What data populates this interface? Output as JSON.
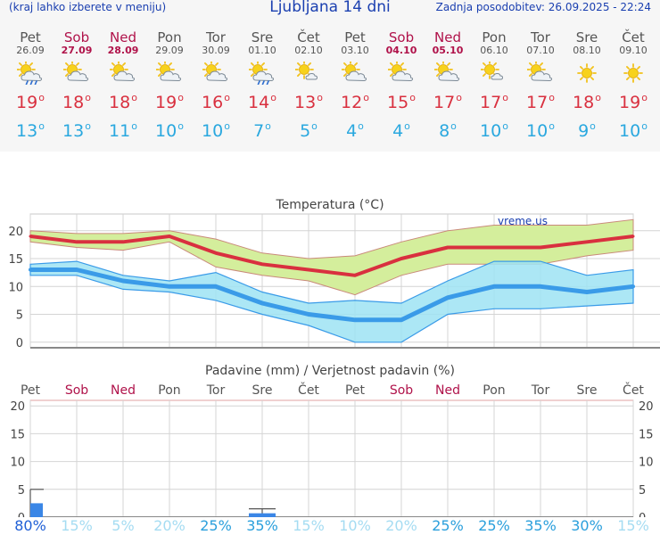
{
  "header": {
    "left_note": "(kraj lahko izberete v meniju)",
    "title": "Ljubljana 14 dni",
    "updated": "Zadnja posodobitev: 26.09.2025 - 22:24"
  },
  "days": [
    {
      "name": "Pet",
      "date": "26.09",
      "weekend": false,
      "icon": "sun-cloud-rain-icon",
      "tmax": "19",
      "tmin": "13",
      "rain_prob": "80%"
    },
    {
      "name": "Sob",
      "date": "27.09",
      "weekend": true,
      "icon": "sun-cloud-icon",
      "tmax": "18",
      "tmin": "13",
      "rain_prob": "15%"
    },
    {
      "name": "Ned",
      "date": "28.09",
      "weekend": true,
      "icon": "sun-cloud-icon",
      "tmax": "18",
      "tmin": "11",
      "rain_prob": "5%"
    },
    {
      "name": "Pon",
      "date": "29.09",
      "weekend": false,
      "icon": "sun-cloud-icon",
      "tmax": "19",
      "tmin": "10",
      "rain_prob": "20%"
    },
    {
      "name": "Tor",
      "date": "30.09",
      "weekend": false,
      "icon": "sun-cloud-icon",
      "tmax": "16",
      "tmin": "10",
      "rain_prob": "25%"
    },
    {
      "name": "Sre",
      "date": "01.10",
      "weekend": false,
      "icon": "sun-cloud-rain-icon",
      "tmax": "14",
      "tmin": "7",
      "rain_prob": "35%"
    },
    {
      "name": "Čet",
      "date": "02.10",
      "weekend": false,
      "icon": "sun-small-cloud-icon",
      "tmax": "13",
      "tmin": "5",
      "rain_prob": "15%"
    },
    {
      "name": "Pet",
      "date": "03.10",
      "weekend": false,
      "icon": "sun-cloud-icon",
      "tmax": "12",
      "tmin": "4",
      "rain_prob": "10%"
    },
    {
      "name": "Sob",
      "date": "04.10",
      "weekend": true,
      "icon": "sun-cloud-icon",
      "tmax": "15",
      "tmin": "4",
      "rain_prob": "20%"
    },
    {
      "name": "Ned",
      "date": "05.10",
      "weekend": true,
      "icon": "sun-cloud-icon",
      "tmax": "17",
      "tmin": "8",
      "rain_prob": "25%"
    },
    {
      "name": "Pon",
      "date": "06.10",
      "weekend": false,
      "icon": "sun-small-cloud-icon",
      "tmax": "17",
      "tmin": "10",
      "rain_prob": "25%"
    },
    {
      "name": "Tor",
      "date": "07.10",
      "weekend": false,
      "icon": "sun-cloud-icon",
      "tmax": "17",
      "tmin": "10",
      "rain_prob": "35%"
    },
    {
      "name": "Sre",
      "date": "08.10",
      "weekend": false,
      "icon": "sun-icon",
      "tmax": "18",
      "tmin": "9",
      "rain_prob": "30%"
    },
    {
      "name": "Čet",
      "date": "09.10",
      "weekend": false,
      "icon": "sun-icon",
      "tmax": "19",
      "tmin": "10",
      "rain_prob": "15%"
    }
  ],
  "colors": {
    "tmax": "#d9303f",
    "tmin": "#2aa8df",
    "weekend": "#b0124a",
    "max_band": "#d4ee9c",
    "min_band": "#9ee3f3",
    "min_line": "#3a9be8",
    "bar": "#3a86e6"
  },
  "chart_data": [
    {
      "type": "line",
      "title": "Temperatura (°C)",
      "watermark": "vreme.us",
      "categories": [
        "Pet",
        "Sob",
        "Ned",
        "Pon",
        "Tor",
        "Sre",
        "Čet",
        "Pet",
        "Sob",
        "Ned",
        "Pon",
        "Tor",
        "Sre",
        "Čet"
      ],
      "series": [
        {
          "values": [
            19,
            18,
            18,
            19,
            16,
            14,
            13,
            12,
            15,
            17,
            17,
            17,
            18,
            19
          ],
          "band_high": [
            20,
            19.5,
            19.5,
            20,
            18.5,
            16,
            15,
            15.5,
            18,
            20,
            21,
            21,
            21,
            22
          ],
          "band_low": [
            18,
            17,
            16.5,
            18,
            13.5,
            12,
            11,
            8.5,
            12,
            14,
            14,
            14,
            15.5,
            16.5
          ]
        },
        {
          "values": [
            13,
            13,
            11,
            10,
            10,
            7,
            5,
            4,
            4,
            8,
            10,
            10,
            9,
            10
          ],
          "band_high": [
            14,
            14.5,
            12,
            11,
            12.5,
            9,
            7,
            7.5,
            7,
            11,
            14.5,
            14.5,
            12,
            13
          ],
          "band_low": [
            12,
            12,
            9.5,
            9,
            7.5,
            5,
            3,
            0,
            0,
            5,
            6,
            6,
            6.5,
            7
          ]
        }
      ],
      "ylim": [
        -1,
        23
      ],
      "yticks": [
        0,
        5,
        10,
        15,
        20
      ],
      "grid": true
    },
    {
      "type": "bar",
      "title": "Padavine (mm) / Verjetnost padavin (%)",
      "categories": [
        "Pet",
        "Sob",
        "Ned",
        "Pon",
        "Tor",
        "Sre",
        "Čet",
        "Pet",
        "Sob",
        "Ned",
        "Pon",
        "Tor",
        "Sre",
        "Čet"
      ],
      "values": [
        2.5,
        0,
        0,
        0,
        0,
        0.7,
        0,
        0,
        0,
        0,
        0,
        0,
        0,
        0
      ],
      "range_high": [
        5,
        0,
        0,
        0,
        0,
        1.5,
        0,
        0,
        0,
        0,
        0,
        0,
        0,
        0
      ],
      "probability": [
        80,
        15,
        5,
        20,
        25,
        35,
        15,
        10,
        20,
        25,
        25,
        35,
        30,
        15
      ],
      "ylim": [
        0,
        21
      ],
      "yticks": [
        0,
        5,
        10,
        15,
        20
      ],
      "grid": true
    }
  ]
}
